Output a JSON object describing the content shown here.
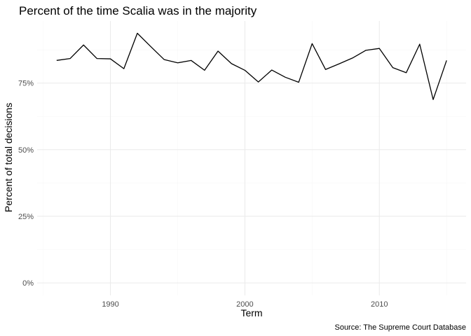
{
  "chart_data": {
    "type": "line",
    "title": "Percent of the time Scalia was in the majority",
    "xlabel": "Term",
    "ylabel": "Percent of total decisions",
    "caption": "Source: The Supreme Court Database",
    "x_ticks": [
      1990,
      2000,
      2010
    ],
    "x_tick_labels": [
      "1990",
      "2000",
      "2010"
    ],
    "y_ticks": [
      0,
      0.25,
      0.5,
      0.75
    ],
    "y_tick_labels": [
      "0%",
      "25%",
      "50%",
      "75%"
    ],
    "xlim": [
      1984.55,
      2016.45
    ],
    "ylim": [
      -0.047,
      0.983
    ],
    "grid": true,
    "legend": "none",
    "line_color": "#000000",
    "series": [
      {
        "x": [
          1986,
          1987,
          1988,
          1989,
          1990,
          1991,
          1992,
          1993,
          1994,
          1995,
          1996,
          1997,
          1998,
          1999,
          2000,
          2001,
          2002,
          2003,
          2004,
          2005,
          2006,
          2007,
          2008,
          2009,
          2010,
          2011,
          2012,
          2013,
          2014,
          2015
        ],
        "values": [
          0.835,
          0.842,
          0.893,
          0.842,
          0.841,
          0.804,
          0.937,
          0.887,
          0.838,
          0.826,
          0.835,
          0.798,
          0.87,
          0.823,
          0.798,
          0.754,
          0.799,
          0.772,
          0.753,
          0.898,
          0.801,
          0.822,
          0.844,
          0.873,
          0.88,
          0.808,
          0.789,
          0.896,
          0.688,
          0.835
        ]
      }
    ]
  }
}
